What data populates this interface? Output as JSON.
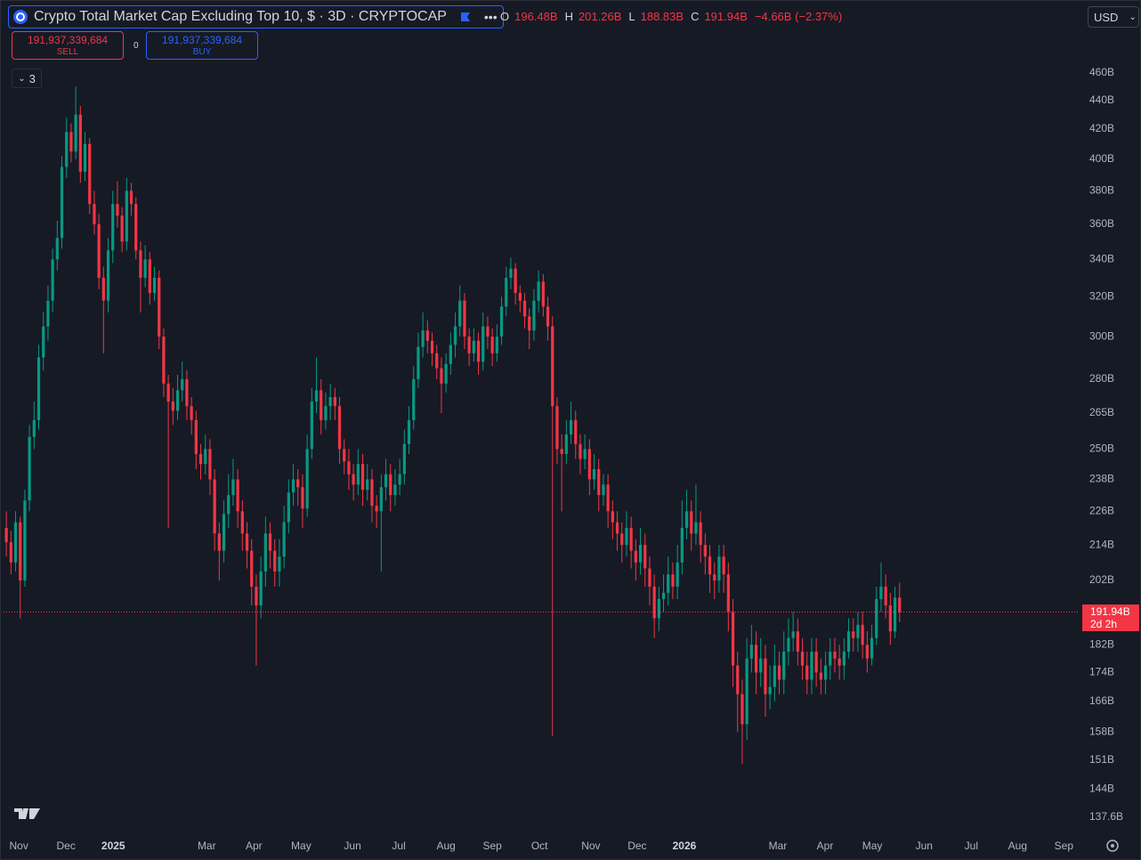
{
  "toolbar": {
    "title": "Crypto Total Market Cap Excluding Top 10, $ · 3D · CRYPTOCAP",
    "ohlc": [
      {
        "label": "O",
        "value": "196.48B"
      },
      {
        "label": "H",
        "value": "201.26B"
      },
      {
        "label": "L",
        "value": "188.83B"
      },
      {
        "label": "C",
        "value": "191.94B"
      }
    ],
    "change": "−4.66B (−2.37%)",
    "currency": "USD",
    "sell_price": "191,937,339,684",
    "sell": "SELL",
    "spread": "0",
    "buy_price": "191,937,339,684",
    "buy": "BUY",
    "indicators": "3"
  },
  "chart_data": {
    "type": "candlestick",
    "log_scale": true,
    "up_color": "#089981",
    "down_color": "#f23645",
    "price_label": "191.94B",
    "countdown": "2d 2h",
    "ylim": [
      137.6,
      460
    ],
    "yticks": [
      {
        "value": 460,
        "label": "460B"
      },
      {
        "value": 440,
        "label": "440B"
      },
      {
        "value": 420,
        "label": "420B"
      },
      {
        "value": 400,
        "label": "400B"
      },
      {
        "value": 380,
        "label": "380B"
      },
      {
        "value": 360,
        "label": "360B"
      },
      {
        "value": 340,
        "label": "340B"
      },
      {
        "value": 320,
        "label": "320B"
      },
      {
        "value": 300,
        "label": "300B"
      },
      {
        "value": 280,
        "label": "280B"
      },
      {
        "value": 265,
        "label": "265B"
      },
      {
        "value": 250,
        "label": "250B"
      },
      {
        "value": 238,
        "label": "238B"
      },
      {
        "value": 226,
        "label": "226B"
      },
      {
        "value": 214,
        "label": "214B"
      },
      {
        "value": 202,
        "label": "202B"
      },
      {
        "value": 182,
        "label": "182B"
      },
      {
        "value": 174,
        "label": "174B"
      },
      {
        "value": 166,
        "label": "166B"
      },
      {
        "value": 158,
        "label": "158B"
      },
      {
        "value": 151,
        "label": "151B"
      },
      {
        "value": 144,
        "label": "144B"
      },
      {
        "value": 137.6,
        "label": "137.6B"
      }
    ],
    "xlim": [
      -0.6,
      231.7
    ],
    "xticks": [
      {
        "value": 2.7,
        "label": "Nov"
      },
      {
        "value": 12.9,
        "label": "Dec"
      },
      {
        "value": 23.1,
        "label": "2025"
      },
      {
        "value": 43.3,
        "label": "Mar"
      },
      {
        "value": 53.5,
        "label": "Apr"
      },
      {
        "value": 63.7,
        "label": "May"
      },
      {
        "value": 74.8,
        "label": "Jun"
      },
      {
        "value": 84.8,
        "label": "Jul"
      },
      {
        "value": 95,
        "label": "Aug"
      },
      {
        "value": 105,
        "label": "Sep"
      },
      {
        "value": 115.2,
        "label": "Oct"
      },
      {
        "value": 126.3,
        "label": "Nov"
      },
      {
        "value": 136.3,
        "label": "Dec"
      },
      {
        "value": 146.5,
        "label": "2026"
      },
      {
        "value": 166.7,
        "label": "Mar"
      },
      {
        "value": 176.9,
        "label": "Apr"
      },
      {
        "value": 187.1,
        "label": "May"
      },
      {
        "value": 198.3,
        "label": "Jun"
      },
      {
        "value": 208.5,
        "label": "Jul"
      },
      {
        "value": 218.5,
        "label": "Aug"
      },
      {
        "value": 228.5,
        "label": "Sep"
      }
    ],
    "candles": [
      [
        220,
        226,
        210,
        215
      ],
      [
        215,
        219,
        204,
        208
      ],
      [
        208,
        226,
        205,
        222
      ],
      [
        222,
        224,
        190,
        202
      ],
      [
        202,
        234,
        200,
        230
      ],
      [
        230,
        260,
        226,
        255
      ],
      [
        255,
        270,
        250,
        262
      ],
      [
        262,
        296,
        258,
        290
      ],
      [
        290,
        312,
        284,
        305
      ],
      [
        305,
        326,
        298,
        318
      ],
      [
        318,
        346,
        312,
        340
      ],
      [
        340,
        362,
        334,
        352
      ],
      [
        352,
        402,
        346,
        395
      ],
      [
        395,
        428,
        388,
        418
      ],
      [
        418,
        424,
        398,
        405
      ],
      [
        405,
        450,
        400,
        430
      ],
      [
        430,
        436,
        385,
        392
      ],
      [
        392,
        418,
        386,
        410
      ],
      [
        410,
        414,
        366,
        372
      ],
      [
        372,
        380,
        354,
        360
      ],
      [
        360,
        366,
        324,
        330
      ],
      [
        330,
        336,
        292,
        318
      ],
      [
        318,
        352,
        312,
        345
      ],
      [
        345,
        380,
        338,
        372
      ],
      [
        372,
        386,
        358,
        365
      ],
      [
        365,
        370,
        344,
        350
      ],
      [
        350,
        388,
        345,
        380
      ],
      [
        380,
        385,
        365,
        372
      ],
      [
        372,
        376,
        340,
        345
      ],
      [
        345,
        350,
        312,
        330
      ],
      [
        330,
        348,
        325,
        340
      ],
      [
        340,
        344,
        316,
        322
      ],
      [
        322,
        336,
        318,
        330
      ],
      [
        330,
        334,
        294,
        300
      ],
      [
        300,
        304,
        272,
        278
      ],
      [
        278,
        282,
        220,
        270
      ],
      [
        270,
        276,
        260,
        266
      ],
      [
        266,
        282,
        262,
        275
      ],
      [
        275,
        288,
        270,
        280
      ],
      [
        280,
        284,
        262,
        268
      ],
      [
        268,
        272,
        256,
        262
      ],
      [
        262,
        266,
        242,
        248
      ],
      [
        248,
        252,
        238,
        244
      ],
      [
        244,
        256,
        240,
        250
      ],
      [
        250,
        254,
        232,
        238
      ],
      [
        238,
        242,
        212,
        218
      ],
      [
        218,
        222,
        202,
        212
      ],
      [
        212,
        230,
        208,
        225
      ],
      [
        225,
        240,
        220,
        232
      ],
      [
        232,
        246,
        228,
        238
      ],
      [
        238,
        242,
        220,
        226
      ],
      [
        226,
        230,
        212,
        218
      ],
      [
        218,
        222,
        206,
        212
      ],
      [
        212,
        216,
        194,
        200
      ],
      [
        200,
        204,
        176,
        194
      ],
      [
        194,
        210,
        190,
        205
      ],
      [
        205,
        224,
        200,
        218
      ],
      [
        218,
        222,
        206,
        212
      ],
      [
        212,
        216,
        200,
        205
      ],
      [
        205,
        216,
        200,
        210
      ],
      [
        210,
        228,
        206,
        222
      ],
      [
        222,
        238,
        218,
        233
      ],
      [
        233,
        244,
        228,
        238
      ],
      [
        238,
        242,
        228,
        235
      ],
      [
        235,
        240,
        220,
        227
      ],
      [
        227,
        256,
        224,
        250
      ],
      [
        250,
        276,
        246,
        270
      ],
      [
        270,
        290,
        265,
        275
      ],
      [
        275,
        280,
        256,
        262
      ],
      [
        262,
        274,
        258,
        268
      ],
      [
        268,
        278,
        262,
        272
      ],
      [
        272,
        276,
        262,
        268
      ],
      [
        268,
        272,
        244,
        250
      ],
      [
        250,
        254,
        240,
        245
      ],
      [
        245,
        250,
        234,
        240
      ],
      [
        240,
        244,
        230,
        236
      ],
      [
        236,
        250,
        232,
        244
      ],
      [
        244,
        248,
        228,
        234
      ],
      [
        234,
        244,
        230,
        238
      ],
      [
        238,
        242,
        222,
        228
      ],
      [
        228,
        232,
        220,
        226
      ],
      [
        226,
        240,
        205,
        235
      ],
      [
        235,
        246,
        230,
        240
      ],
      [
        240,
        244,
        226,
        232
      ],
      [
        232,
        242,
        228,
        236
      ],
      [
        236,
        246,
        232,
        240
      ],
      [
        240,
        258,
        236,
        252
      ],
      [
        252,
        268,
        248,
        262
      ],
      [
        262,
        286,
        258,
        280
      ],
      [
        280,
        302,
        276,
        295
      ],
      [
        295,
        312,
        290,
        303
      ],
      [
        303,
        308,
        292,
        298
      ],
      [
        298,
        302,
        286,
        292
      ],
      [
        292,
        296,
        280,
        285
      ],
      [
        285,
        290,
        265,
        278
      ],
      [
        278,
        292,
        274,
        287
      ],
      [
        287,
        302,
        282,
        296
      ],
      [
        296,
        312,
        290,
        305
      ],
      [
        305,
        326,
        300,
        318
      ],
      [
        318,
        322,
        294,
        300
      ],
      [
        300,
        304,
        286,
        292
      ],
      [
        292,
        304,
        288,
        298
      ],
      [
        298,
        302,
        282,
        288
      ],
      [
        288,
        312,
        284,
        305
      ],
      [
        305,
        310,
        294,
        300
      ],
      [
        300,
        304,
        286,
        292
      ],
      [
        292,
        306,
        288,
        300
      ],
      [
        300,
        320,
        296,
        315
      ],
      [
        315,
        336,
        310,
        330
      ],
      [
        330,
        341,
        324,
        335
      ],
      [
        335,
        338,
        316,
        322
      ],
      [
        322,
        326,
        312,
        318
      ],
      [
        318,
        322,
        304,
        310
      ],
      [
        310,
        314,
        294,
        303
      ],
      [
        303,
        324,
        298,
        318
      ],
      [
        318,
        334,
        312,
        328
      ],
      [
        328,
        332,
        310,
        315
      ],
      [
        315,
        320,
        298,
        305
      ],
      [
        305,
        310,
        157,
        268
      ],
      [
        268,
        272,
        244,
        250
      ],
      [
        250,
        256,
        226,
        248
      ],
      [
        248,
        262,
        244,
        256
      ],
      [
        256,
        270,
        252,
        262
      ],
      [
        262,
        266,
        246,
        252
      ],
      [
        252,
        256,
        240,
        246
      ],
      [
        246,
        256,
        242,
        250
      ],
      [
        250,
        254,
        232,
        238
      ],
      [
        238,
        248,
        234,
        242
      ],
      [
        242,
        246,
        226,
        232
      ],
      [
        232,
        240,
        228,
        236
      ],
      [
        236,
        240,
        220,
        226
      ],
      [
        226,
        230,
        216,
        222
      ],
      [
        222,
        226,
        212,
        218
      ],
      [
        218,
        222,
        208,
        214
      ],
      [
        214,
        226,
        210,
        220
      ],
      [
        220,
        224,
        206,
        212
      ],
      [
        212,
        216,
        202,
        208
      ],
      [
        208,
        220,
        204,
        214
      ],
      [
        214,
        218,
        200,
        206
      ],
      [
        206,
        210,
        194,
        200
      ],
      [
        200,
        204,
        184,
        190
      ],
      [
        190,
        200,
        186,
        196
      ],
      [
        196,
        204,
        192,
        198
      ],
      [
        198,
        210,
        194,
        204
      ],
      [
        204,
        208,
        196,
        200
      ],
      [
        200,
        214,
        196,
        208
      ],
      [
        208,
        230,
        204,
        220
      ],
      [
        220,
        234,
        216,
        226
      ],
      [
        226,
        230,
        212,
        218
      ],
      [
        218,
        236,
        214,
        222
      ],
      [
        222,
        226,
        208,
        214
      ],
      [
        214,
        218,
        204,
        210
      ],
      [
        210,
        214,
        198,
        204
      ],
      [
        204,
        208,
        196,
        202
      ],
      [
        202,
        214,
        198,
        210
      ],
      [
        210,
        214,
        198,
        204
      ],
      [
        204,
        208,
        186,
        192
      ],
      [
        192,
        196,
        170,
        176
      ],
      [
        176,
        180,
        158,
        168
      ],
      [
        168,
        172,
        150,
        160
      ],
      [
        160,
        184,
        156,
        178
      ],
      [
        178,
        188,
        174,
        182
      ],
      [
        182,
        186,
        168,
        174
      ],
      [
        174,
        184,
        170,
        178
      ],
      [
        178,
        182,
        162,
        168
      ],
      [
        168,
        176,
        164,
        170
      ],
      [
        170,
        182,
        166,
        176
      ],
      [
        176,
        180,
        168,
        172
      ],
      [
        172,
        186,
        168,
        180
      ],
      [
        180,
        190,
        176,
        184
      ],
      [
        184,
        192,
        180,
        186
      ],
      [
        186,
        190,
        176,
        180
      ],
      [
        180,
        184,
        172,
        176
      ],
      [
        176,
        180,
        168,
        172
      ],
      [
        172,
        184,
        168,
        180
      ],
      [
        180,
        184,
        170,
        174
      ],
      [
        174,
        178,
        168,
        172
      ],
      [
        172,
        180,
        168,
        176
      ],
      [
        176,
        184,
        172,
        180
      ],
      [
        180,
        184,
        174,
        178
      ],
      [
        178,
        182,
        172,
        176
      ],
      [
        176,
        184,
        172,
        180
      ],
      [
        180,
        190,
        178,
        186
      ],
      [
        186,
        190,
        180,
        184
      ],
      [
        184,
        192,
        180,
        188
      ],
      [
        188,
        192,
        178,
        182
      ],
      [
        182,
        186,
        174,
        178
      ],
      [
        178,
        188,
        176,
        184
      ],
      [
        184,
        200,
        182,
        196
      ],
      [
        196,
        208,
        192,
        200
      ],
      [
        200,
        204,
        190,
        194
      ],
      [
        194,
        198,
        182,
        186
      ],
      [
        186,
        200,
        184,
        196.48
      ],
      [
        196.48,
        201.26,
        188.83,
        191.94
      ]
    ]
  }
}
